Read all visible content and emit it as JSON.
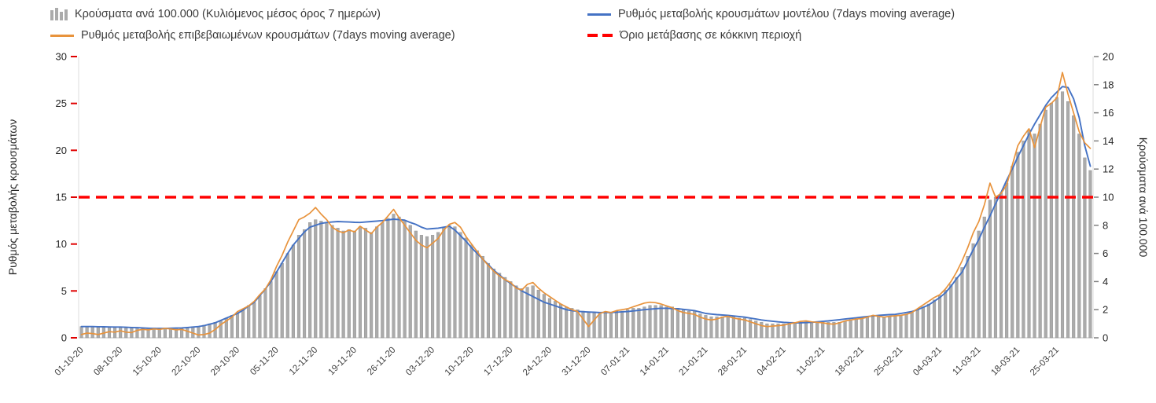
{
  "chart_data": {
    "type": "mixed-bar-line",
    "title": "",
    "days_total": 182,
    "start_date": "01-10-20",
    "x_tick_labels": [
      "01-10-20",
      "08-10-20",
      "15-10-20",
      "22-10-20",
      "29-10-20",
      "05-11-20",
      "12-11-20",
      "19-11-20",
      "26-11-20",
      "03-12-20",
      "10-12-20",
      "17-12-20",
      "24-12-20",
      "31-12-20",
      "07-01-21",
      "14-01-21",
      "21-01-21",
      "28-01-21",
      "04-02-21",
      "11-02-21",
      "18-02-21",
      "25-02-21",
      "04-03-21",
      "11-03-21",
      "18-03-21",
      "25-03-21"
    ],
    "x_tick_day_indices": [
      0,
      7,
      14,
      21,
      28,
      35,
      42,
      49,
      56,
      63,
      70,
      77,
      84,
      91,
      98,
      105,
      112,
      119,
      126,
      133,
      140,
      147,
      154,
      161,
      168,
      175
    ],
    "left_axis": {
      "label": "Ρυθμός μεταβολής κρουσμάτων",
      "min": 0,
      "max": 30,
      "step": 5,
      "tick_mark_color": "#e00000"
    },
    "right_axis": {
      "label": "Κρούσματα ανά 100.000",
      "min": 0,
      "max": 20,
      "step": 2,
      "tick_mark_color": "#808080"
    },
    "threshold": {
      "value_left_axis": 15,
      "label": "Όριο μετάβασης σε κόκκινη περιοχή",
      "color": "#ff0000"
    },
    "grid": "off",
    "legend_position": "top",
    "legend_entries": [
      {
        "label": "Κρούσματα ανά 100.000 (Κυλιόμενος μέσος όρος 7 ημερών)",
        "swatch": "gray-bars"
      },
      {
        "label": "Ρυθμός μεταβολής κρουσμάτων μοντέλου (7days moving average)",
        "swatch": "blue-line"
      },
      {
        "label": "Ρυθμός μεταβολής επιβεβαιωμένων κρουσμάτων (7days moving average)",
        "swatch": "orange-line"
      },
      {
        "label": "Όριο μετάβασης σε κόκκινη περιοχή",
        "swatch": "red-dashed"
      }
    ],
    "series": [
      {
        "name": "Κρούσματα ανά 100.000 (Κυλιόμενος μέσος όρος 7 ημερών)",
        "type": "bar",
        "axis": "right",
        "color": "#ababab",
        "values": [
          0.8,
          0.8,
          0.8,
          0.8,
          0.8,
          0.8,
          0.8,
          0.8,
          0.7,
          0.7,
          0.7,
          0.7,
          0.7,
          0.7,
          0.7,
          0.7,
          0.7,
          0.7,
          0.7,
          0.7,
          0.8,
          0.8,
          0.9,
          1.0,
          1.1,
          1.2,
          1.4,
          1.6,
          1.7,
          2.0,
          2.3,
          2.5,
          3.0,
          3.5,
          4.0,
          4.7,
          5.3,
          6.0,
          6.6,
          7.3,
          7.7,
          8.2,
          8.4,
          8.3,
          8.2,
          8.0,
          7.8,
          7.6,
          7.7,
          7.6,
          7.9,
          7.8,
          7.5,
          7.9,
          8.2,
          8.5,
          8.8,
          8.6,
          8.3,
          8.0,
          7.6,
          7.3,
          7.2,
          7.3,
          7.5,
          7.8,
          8.0,
          7.9,
          7.5,
          7.1,
          6.6,
          6.2,
          5.8,
          5.3,
          4.9,
          4.6,
          4.3,
          4.0,
          3.7,
          3.5,
          3.6,
          3.7,
          3.4,
          3.1,
          2.8,
          2.6,
          2.4,
          2.2,
          2.1,
          2.0,
          1.9,
          1.8,
          1.8,
          1.8,
          1.8,
          1.8,
          1.9,
          1.9,
          2.0,
          2.1,
          2.1,
          2.2,
          2.3,
          2.3,
          2.3,
          2.2,
          2.2,
          2.1,
          2.0,
          1.9,
          1.9,
          1.7,
          1.6,
          1.5,
          1.5,
          1.5,
          1.6,
          1.5,
          1.4,
          1.4,
          1.3,
          1.2,
          1.1,
          1.0,
          1.0,
          1.0,
          1.0,
          1.0,
          1.1,
          1.1,
          1.2,
          1.1,
          1.1,
          1.1,
          1.1,
          1.1,
          1.1,
          1.2,
          1.3,
          1.3,
          1.4,
          1.5,
          1.6,
          1.5,
          1.5,
          1.5,
          1.6,
          1.6,
          1.7,
          1.8,
          2.0,
          2.2,
          2.4,
          2.7,
          3.0,
          3.4,
          3.8,
          4.3,
          5.0,
          5.8,
          6.7,
          7.6,
          8.6,
          9.8,
          10.0,
          10.3,
          11.0,
          12.2,
          13.2,
          14.0,
          14.8,
          14.5,
          15.2,
          16.2,
          16.7,
          17.1,
          17.5,
          16.8,
          15.8,
          14.5,
          12.8,
          11.9
        ]
      },
      {
        "name": "Ρυθμός μεταβολής κρουσμάτων μοντέλου (7days moving average)",
        "type": "line",
        "axis": "left",
        "color": "#4472c4",
        "values": [
          1.2,
          1.2,
          1.2,
          1.18,
          1.17,
          1.16,
          1.15,
          1.15,
          1.12,
          1.1,
          1.08,
          1.05,
          1.02,
          1.0,
          1.0,
          1.0,
          1.02,
          1.04,
          1.05,
          1.1,
          1.15,
          1.2,
          1.3,
          1.45,
          1.6,
          1.85,
          2.1,
          2.35,
          2.6,
          2.95,
          3.4,
          3.8,
          4.5,
          5.2,
          6.0,
          7.0,
          8.0,
          9.0,
          9.9,
          10.6,
          11.3,
          11.8,
          12.0,
          12.2,
          12.3,
          12.35,
          12.4,
          12.38,
          12.35,
          12.32,
          12.3,
          12.35,
          12.4,
          12.45,
          12.5,
          12.58,
          12.65,
          12.6,
          12.55,
          12.3,
          12.1,
          11.8,
          11.6,
          11.65,
          11.7,
          11.8,
          11.9,
          11.5,
          10.9,
          10.3,
          9.6,
          9.0,
          8.4,
          7.8,
          7.2,
          6.7,
          6.2,
          5.8,
          5.4,
          5.0,
          4.7,
          4.4,
          4.1,
          3.8,
          3.6,
          3.4,
          3.2,
          3.0,
          2.9,
          2.82,
          2.78,
          2.75,
          2.72,
          2.7,
          2.7,
          2.7,
          2.73,
          2.77,
          2.8,
          2.87,
          2.93,
          3.0,
          3.05,
          3.1,
          3.15,
          3.15,
          3.12,
          3.1,
          3.03,
          2.97,
          2.9,
          2.75,
          2.6,
          2.53,
          2.47,
          2.43,
          2.4,
          2.33,
          2.27,
          2.2,
          2.1,
          2.0,
          1.9,
          1.83,
          1.77,
          1.7,
          1.65,
          1.62,
          1.6,
          1.6,
          1.62,
          1.65,
          1.7,
          1.75,
          1.8,
          1.87,
          1.93,
          2.0,
          2.07,
          2.13,
          2.2,
          2.27,
          2.33,
          2.4,
          2.43,
          2.47,
          2.5,
          2.6,
          2.7,
          2.8,
          3.0,
          3.25,
          3.5,
          3.9,
          4.3,
          4.8,
          5.5,
          6.3,
          7.0,
          8.2,
          9.4,
          10.5,
          11.8,
          13.0,
          14.3,
          15.5,
          16.8,
          18.0,
          19.3,
          20.5,
          21.7,
          22.8,
          23.8,
          24.8,
          25.6,
          26.2,
          26.8,
          26.7,
          25.5,
          23.5,
          20.5,
          18.3
        ]
      },
      {
        "name": "Ρυθμός μεταβολής επιβεβαιωμένων κρουσμάτων (7days moving average)",
        "type": "line",
        "axis": "left",
        "color": "#e8933c",
        "values": [
          0.35,
          0.5,
          0.45,
          0.35,
          0.5,
          0.65,
          0.6,
          0.75,
          0.6,
          0.55,
          0.8,
          0.9,
          0.85,
          0.95,
          0.9,
          1.0,
          0.95,
          0.85,
          0.9,
          0.7,
          0.5,
          0.3,
          0.35,
          0.5,
          0.9,
          1.4,
          1.8,
          2.2,
          2.8,
          3.1,
          3.4,
          3.9,
          4.6,
          5.2,
          6.2,
          7.6,
          8.8,
          10.2,
          11.4,
          12.6,
          12.9,
          13.3,
          13.9,
          13.2,
          12.6,
          11.8,
          11.4,
          11.2,
          11.5,
          11.3,
          11.9,
          11.5,
          11.1,
          11.8,
          12.3,
          13.0,
          13.7,
          12.8,
          12.0,
          11.2,
          10.4,
          9.9,
          9.6,
          10.1,
          10.6,
          11.5,
          12.1,
          12.3,
          11.8,
          10.8,
          10.0,
          9.2,
          8.4,
          7.7,
          7.1,
          6.6,
          6.2,
          5.9,
          5.3,
          5.1,
          5.7,
          5.9,
          5.3,
          4.8,
          4.4,
          4.0,
          3.6,
          3.3,
          3.0,
          2.8,
          2.0,
          1.2,
          1.9,
          2.6,
          2.8,
          2.7,
          2.9,
          3.0,
          3.1,
          3.3,
          3.5,
          3.7,
          3.8,
          3.75,
          3.6,
          3.4,
          3.2,
          2.9,
          2.7,
          2.6,
          2.5,
          2.2,
          2.0,
          1.9,
          2.0,
          2.2,
          2.3,
          2.1,
          2.0,
          1.9,
          1.7,
          1.5,
          1.3,
          1.2,
          1.25,
          1.3,
          1.35,
          1.5,
          1.6,
          1.75,
          1.8,
          1.7,
          1.65,
          1.6,
          1.5,
          1.45,
          1.6,
          1.8,
          1.9,
          2.0,
          2.05,
          2.2,
          2.4,
          2.3,
          2.2,
          2.3,
          2.35,
          2.4,
          2.5,
          2.7,
          3.1,
          3.5,
          3.9,
          4.3,
          4.6,
          5.2,
          6.0,
          7.0,
          8.2,
          9.6,
          11.2,
          12.4,
          14.2,
          16.5,
          15.0,
          15.4,
          16.3,
          18.4,
          20.5,
          21.5,
          22.3,
          20.3,
          22.5,
          24.6,
          25.0,
          25.6,
          28.3,
          26.0,
          24.0,
          22.0,
          20.8,
          20.2
        ]
      }
    ]
  }
}
